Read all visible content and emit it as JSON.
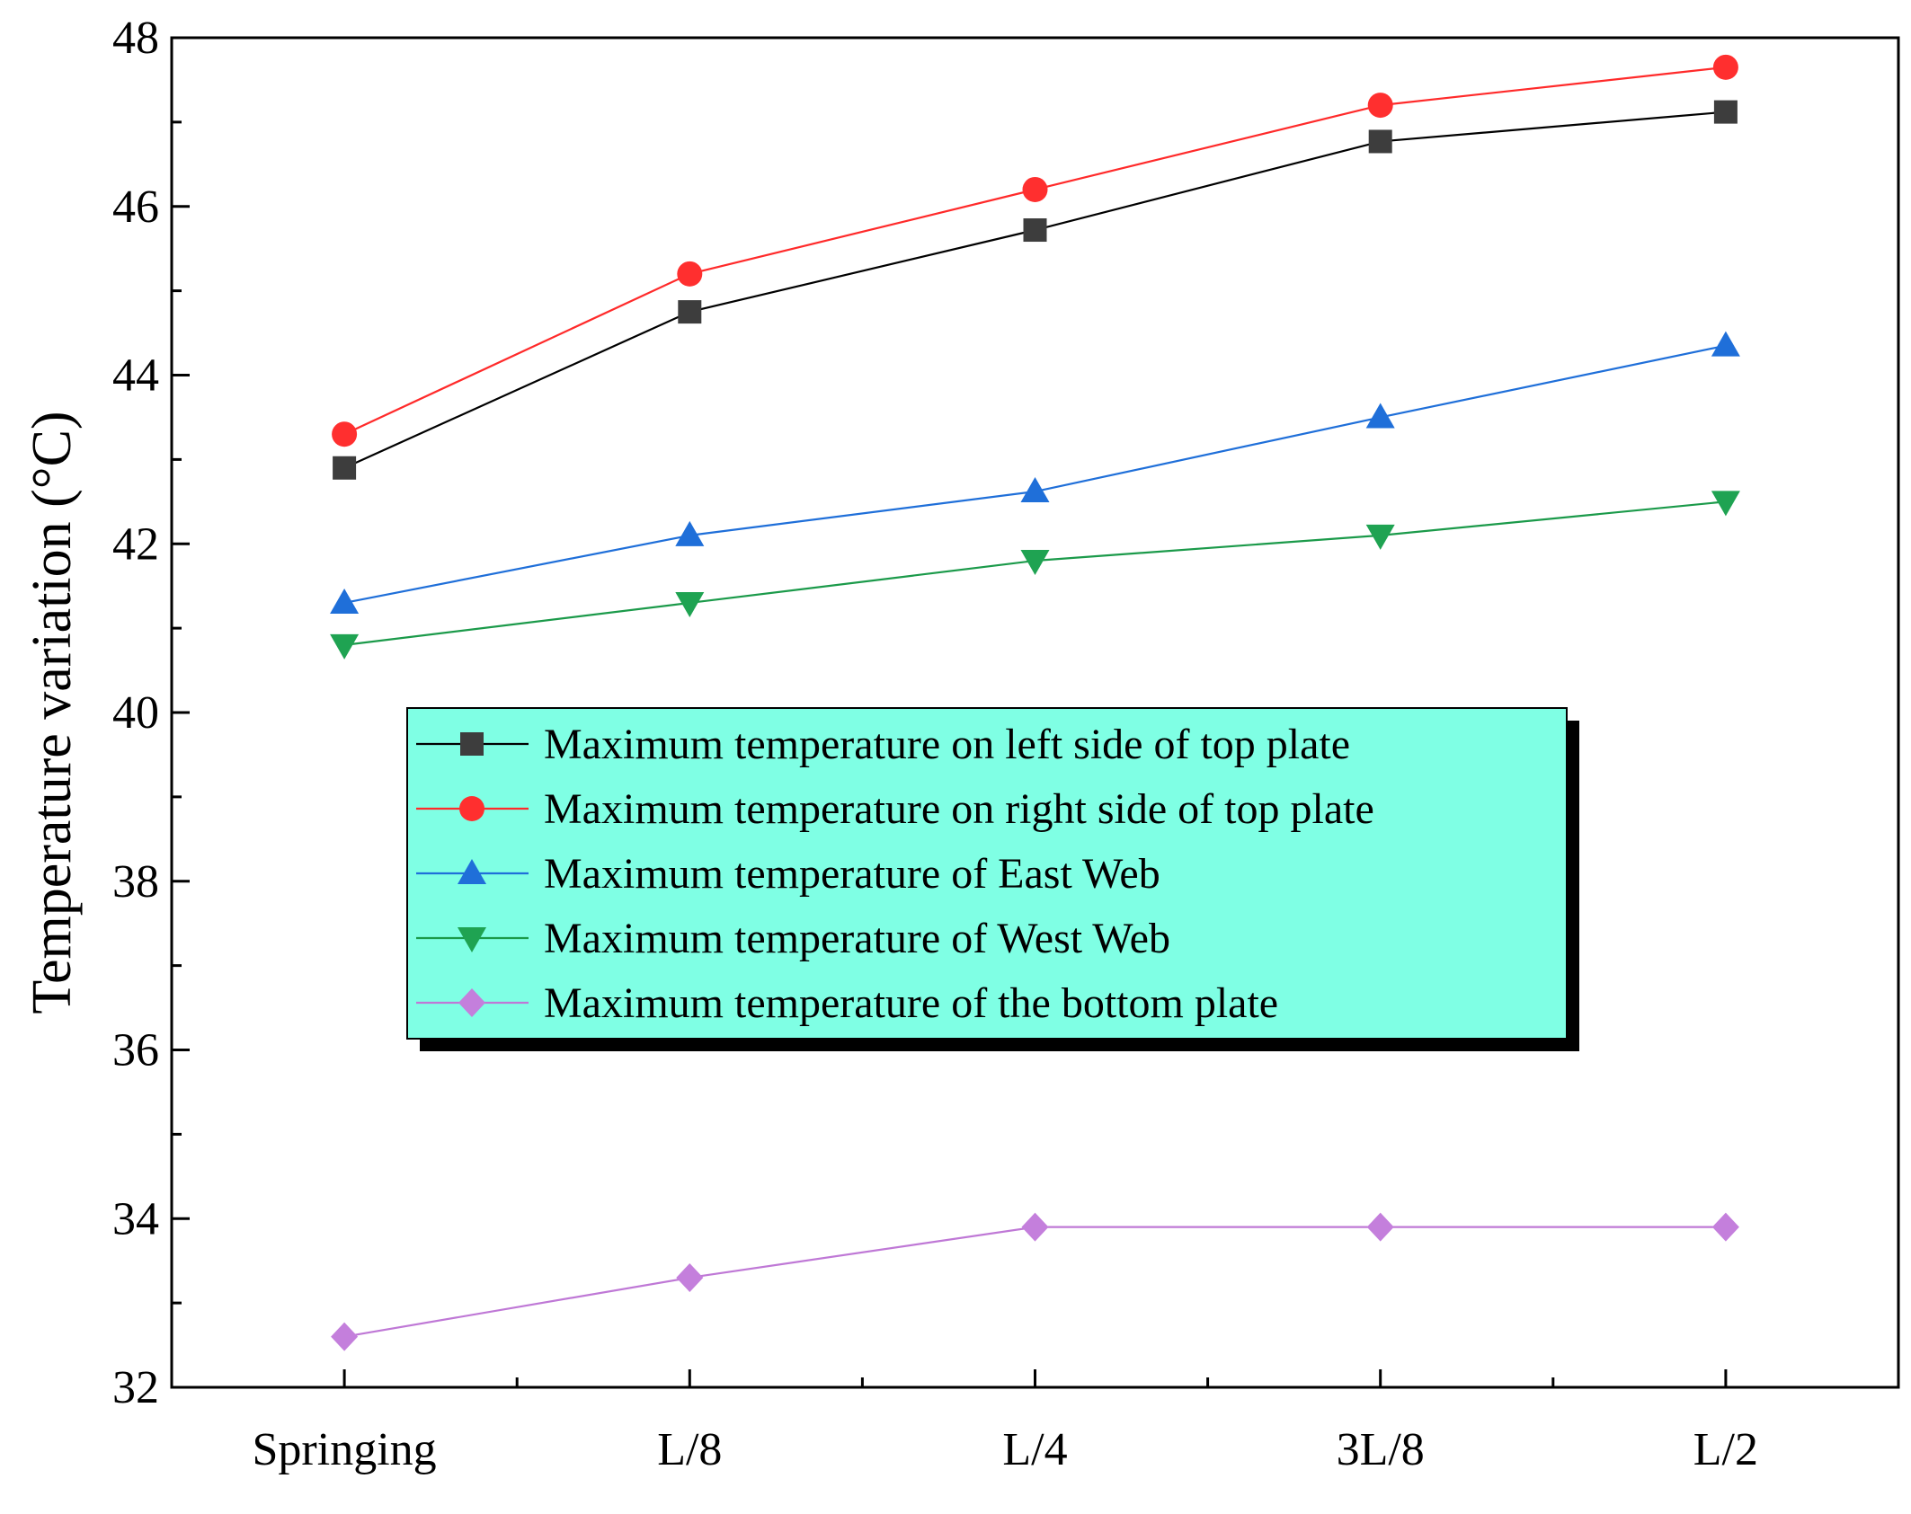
{
  "chart_data": {
    "type": "line",
    "title": "",
    "xlabel": "",
    "ylabel": "Temperature variation (°C)",
    "categories": [
      "Springing",
      "L/8",
      "L/4",
      "3L/8",
      "L/2"
    ],
    "ylim": [
      32,
      48
    ],
    "yticks": [
      32,
      34,
      36,
      38,
      40,
      42,
      44,
      46,
      48
    ],
    "grid": false,
    "legend_position": "center",
    "series": [
      {
        "name": "Maximum temperature on left side of top plate",
        "color": "#000000",
        "marker_color": "#3d3d3d",
        "marker": "square",
        "values": [
          42.9,
          44.75,
          45.72,
          46.77,
          47.12
        ]
      },
      {
        "name": "Maximum temperature on right side of top plate",
        "color": "#ff2a2a",
        "marker_color": "#ff2f2f",
        "marker": "circle",
        "values": [
          43.3,
          45.2,
          46.2,
          47.2,
          47.65
        ]
      },
      {
        "name": "Maximum temperature of East Web",
        "color": "#1f6fd9",
        "marker_color": "#1f6fd9",
        "marker": "triangle-up",
        "values": [
          41.3,
          42.1,
          42.62,
          43.5,
          44.35
        ]
      },
      {
        "name": "Maximum temperature of West Web",
        "color": "#1b9a4a",
        "marker_color": "#1fa352",
        "marker": "triangle-down",
        "values": [
          40.8,
          41.3,
          41.8,
          42.1,
          42.5
        ]
      },
      {
        "name": "Maximum temperature of the bottom plate",
        "color": "#bf78d6",
        "marker_color": "#c47fdc",
        "marker": "diamond",
        "values": [
          32.6,
          33.3,
          33.9,
          33.9,
          33.9
        ]
      }
    ]
  },
  "legend_style": {
    "background": "#7fffe4",
    "shadow": "#000000"
  }
}
